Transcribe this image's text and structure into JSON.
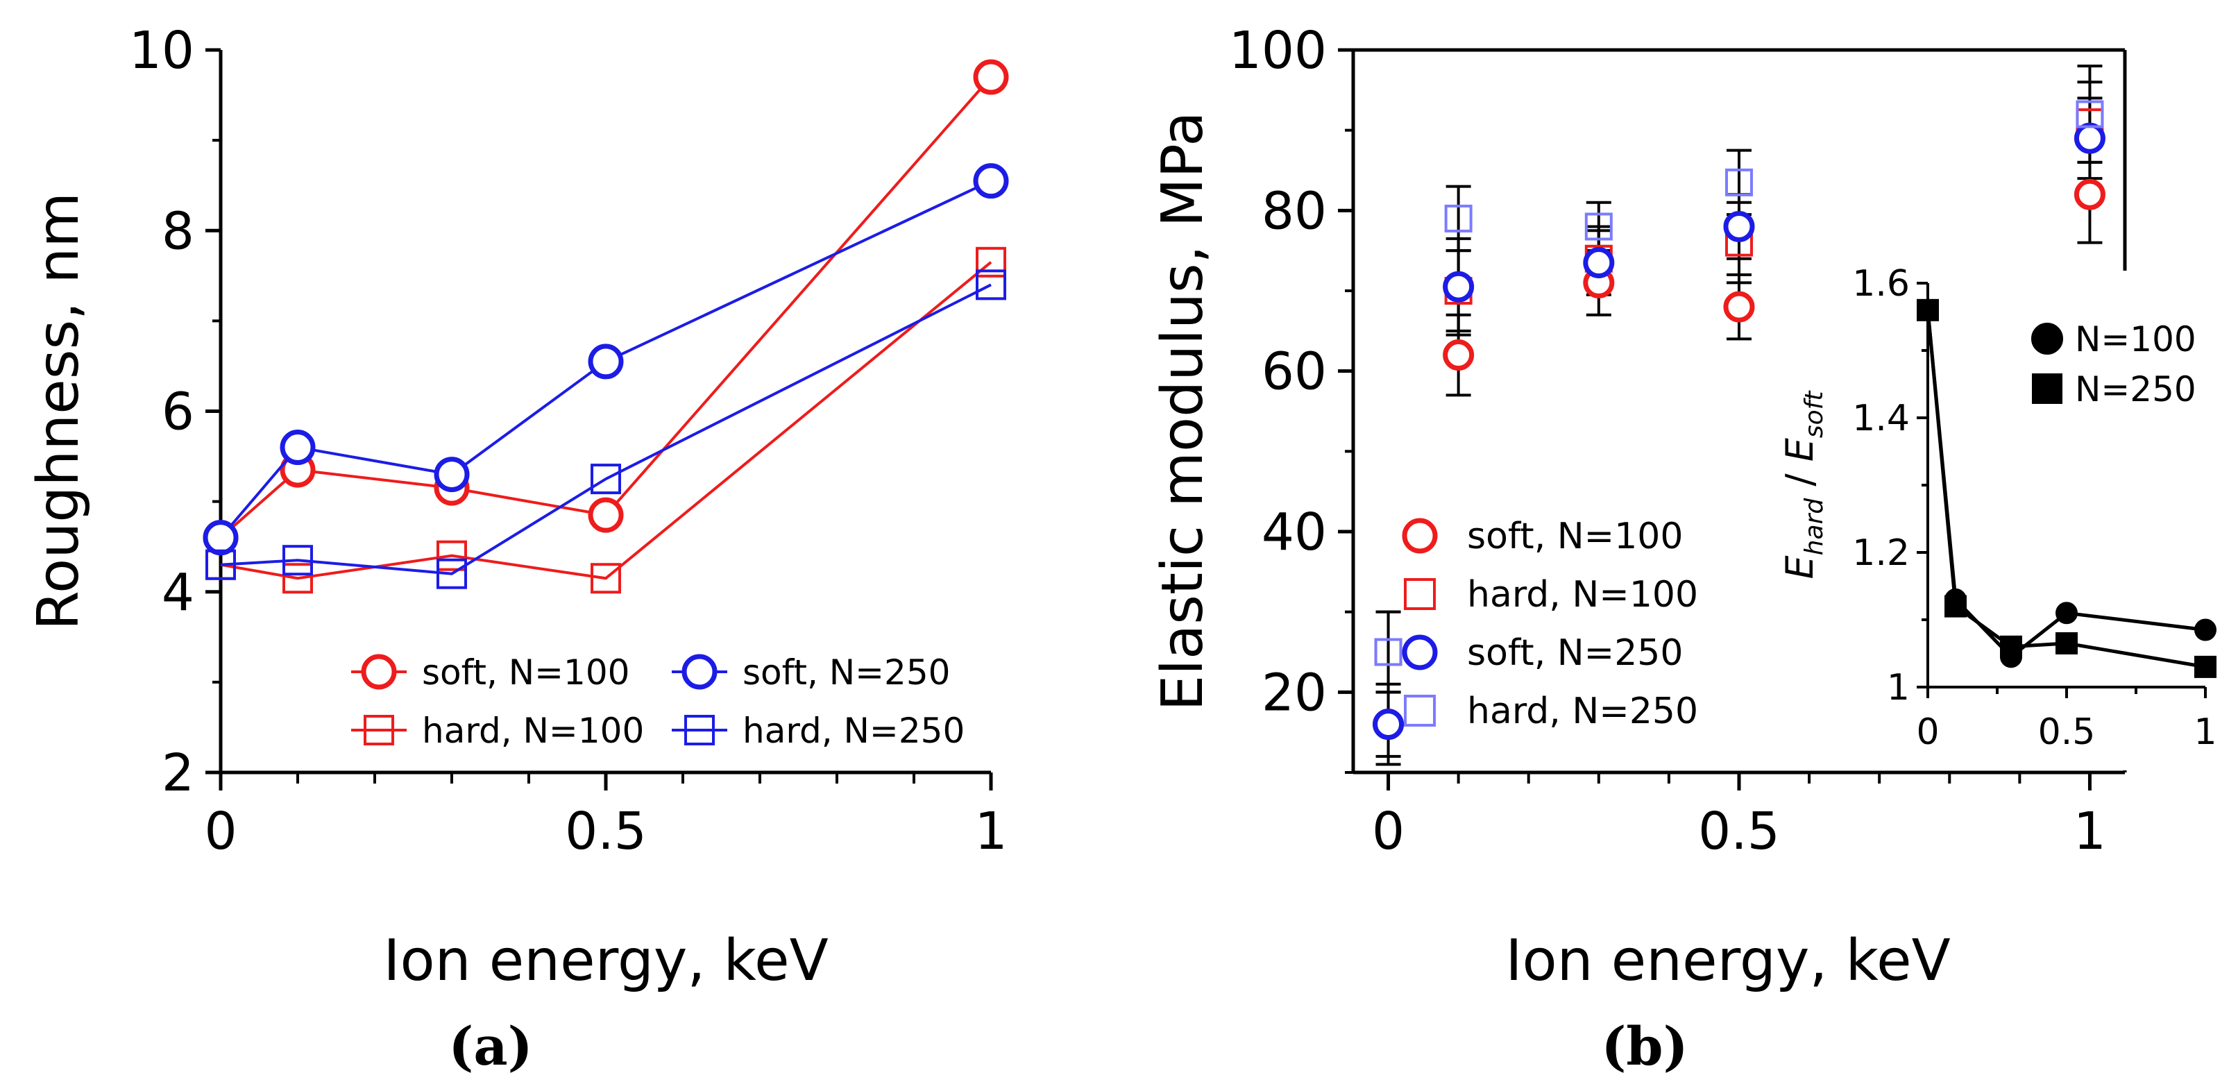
{
  "chart_data": [
    {
      "panel": "(a)",
      "type": "line",
      "xlabel": "Ion energy, keV",
      "ylabel": "Roughness, nm",
      "xlim": [
        0,
        1
      ],
      "ylim": [
        2,
        10
      ],
      "xticks": [
        0,
        0.5,
        1
      ],
      "xtick_labels": [
        "0",
        "0.5",
        "1"
      ],
      "yticks": [
        2,
        4,
        6,
        8,
        10
      ],
      "ytick_labels": [
        "2",
        "4",
        "6",
        "8",
        "10"
      ],
      "legend_position": "bottom-right",
      "series": [
        {
          "name": "soft, N=100",
          "color": "#ee1c1c",
          "marker": "circle",
          "x": [
            0,
            0.1,
            0.3,
            0.5,
            1
          ],
          "y": [
            4.6,
            5.35,
            5.15,
            4.85,
            9.7
          ]
        },
        {
          "name": "hard, N=100",
          "color": "#ee1c1c",
          "marker": "square",
          "x": [
            0,
            0.1,
            0.3,
            0.5,
            1
          ],
          "y": [
            4.3,
            4.15,
            4.4,
            4.15,
            7.65
          ]
        },
        {
          "name": "soft, N=250",
          "color": "#1c1ce6",
          "marker": "circle",
          "x": [
            0,
            0.1,
            0.3,
            0.5,
            1
          ],
          "y": [
            4.6,
            5.6,
            5.3,
            6.55,
            8.55
          ]
        },
        {
          "name": "hard, N=250",
          "color": "#1c1ce6",
          "marker": "square",
          "x": [
            0,
            0.1,
            0.3,
            0.5,
            1
          ],
          "y": [
            4.3,
            4.35,
            4.2,
            5.25,
            7.4
          ]
        }
      ]
    },
    {
      "panel": "(b)",
      "type": "scatter",
      "xlabel": "Ion energy, keV",
      "ylabel": "Elastic modulus, MPa",
      "xlim": [
        -0.05,
        1.05
      ],
      "ylim": [
        10,
        100
      ],
      "xticks": [
        0,
        0.5,
        1
      ],
      "xtick_labels": [
        "0",
        "0.5",
        "1"
      ],
      "yticks": [
        20,
        40,
        60,
        80,
        100
      ],
      "ytick_labels": [
        "20",
        "40",
        "60",
        "80",
        "100"
      ],
      "legend_position": "bottom-left",
      "series": [
        {
          "name": "soft, N=100",
          "color": "#ee1c1c",
          "marker": "circle",
          "x": [
            0,
            0.1,
            0.3,
            0.5,
            1
          ],
          "y": [
            16,
            62,
            71,
            68,
            82
          ],
          "err": [
            4,
            5,
            4,
            4,
            6
          ]
        },
        {
          "name": "hard, N=100",
          "color": "#ee1c1c",
          "marker": "square",
          "x": [
            0,
            0.1,
            0.3,
            0.5,
            1
          ],
          "y": [
            25,
            70,
            74,
            76,
            91
          ],
          "err": [
            5,
            5,
            4,
            5,
            5
          ]
        },
        {
          "name": "soft, N=250",
          "color": "#1c1ce6",
          "marker": "circle",
          "x": [
            0,
            0.1,
            0.3,
            0.5,
            1
          ],
          "y": [
            16,
            70.5,
            73.5,
            78,
            89
          ],
          "err": [
            5,
            6,
            4,
            4,
            5
          ]
        },
        {
          "name": "hard, N=250",
          "color": "#7b7bff",
          "marker": "square",
          "x": [
            0,
            0.1,
            0.3,
            0.5,
            1
          ],
          "y": [
            25,
            79,
            78,
            83.5,
            92
          ],
          "err": [
            5,
            4,
            3,
            4,
            6
          ]
        }
      ]
    },
    {
      "panel": "(b) inset",
      "type": "line",
      "xlabel": "",
      "ylabel": "E_hard / E_soft",
      "ylabel_parts": {
        "e1": "E",
        "sub1": "hard",
        "slash": " / ",
        "e2": "E",
        "sub2": "soft"
      },
      "xlim": [
        0,
        1
      ],
      "ylim": [
        1,
        1.6
      ],
      "xticks": [
        0,
        0.5,
        1
      ],
      "xtick_labels": [
        "0",
        "0.5",
        "1"
      ],
      "yticks": [
        1,
        1.2,
        1.4,
        1.6
      ],
      "ytick_labels": [
        "1",
        "1.2",
        "1.4",
        "1.6"
      ],
      "legend_position": "top-right",
      "series": [
        {
          "name": "N=100",
          "color": "#000000",
          "marker": "circle",
          "x": [
            0,
            0.1,
            0.3,
            0.5,
            1
          ],
          "y": [
            1.56,
            1.13,
            1.045,
            1.11,
            1.085
          ]
        },
        {
          "name": "N=250",
          "color": "#000000",
          "marker": "square",
          "x": [
            0,
            0.1,
            0.3,
            0.5,
            1
          ],
          "y": [
            1.56,
            1.12,
            1.06,
            1.065,
            1.03
          ]
        }
      ]
    }
  ]
}
